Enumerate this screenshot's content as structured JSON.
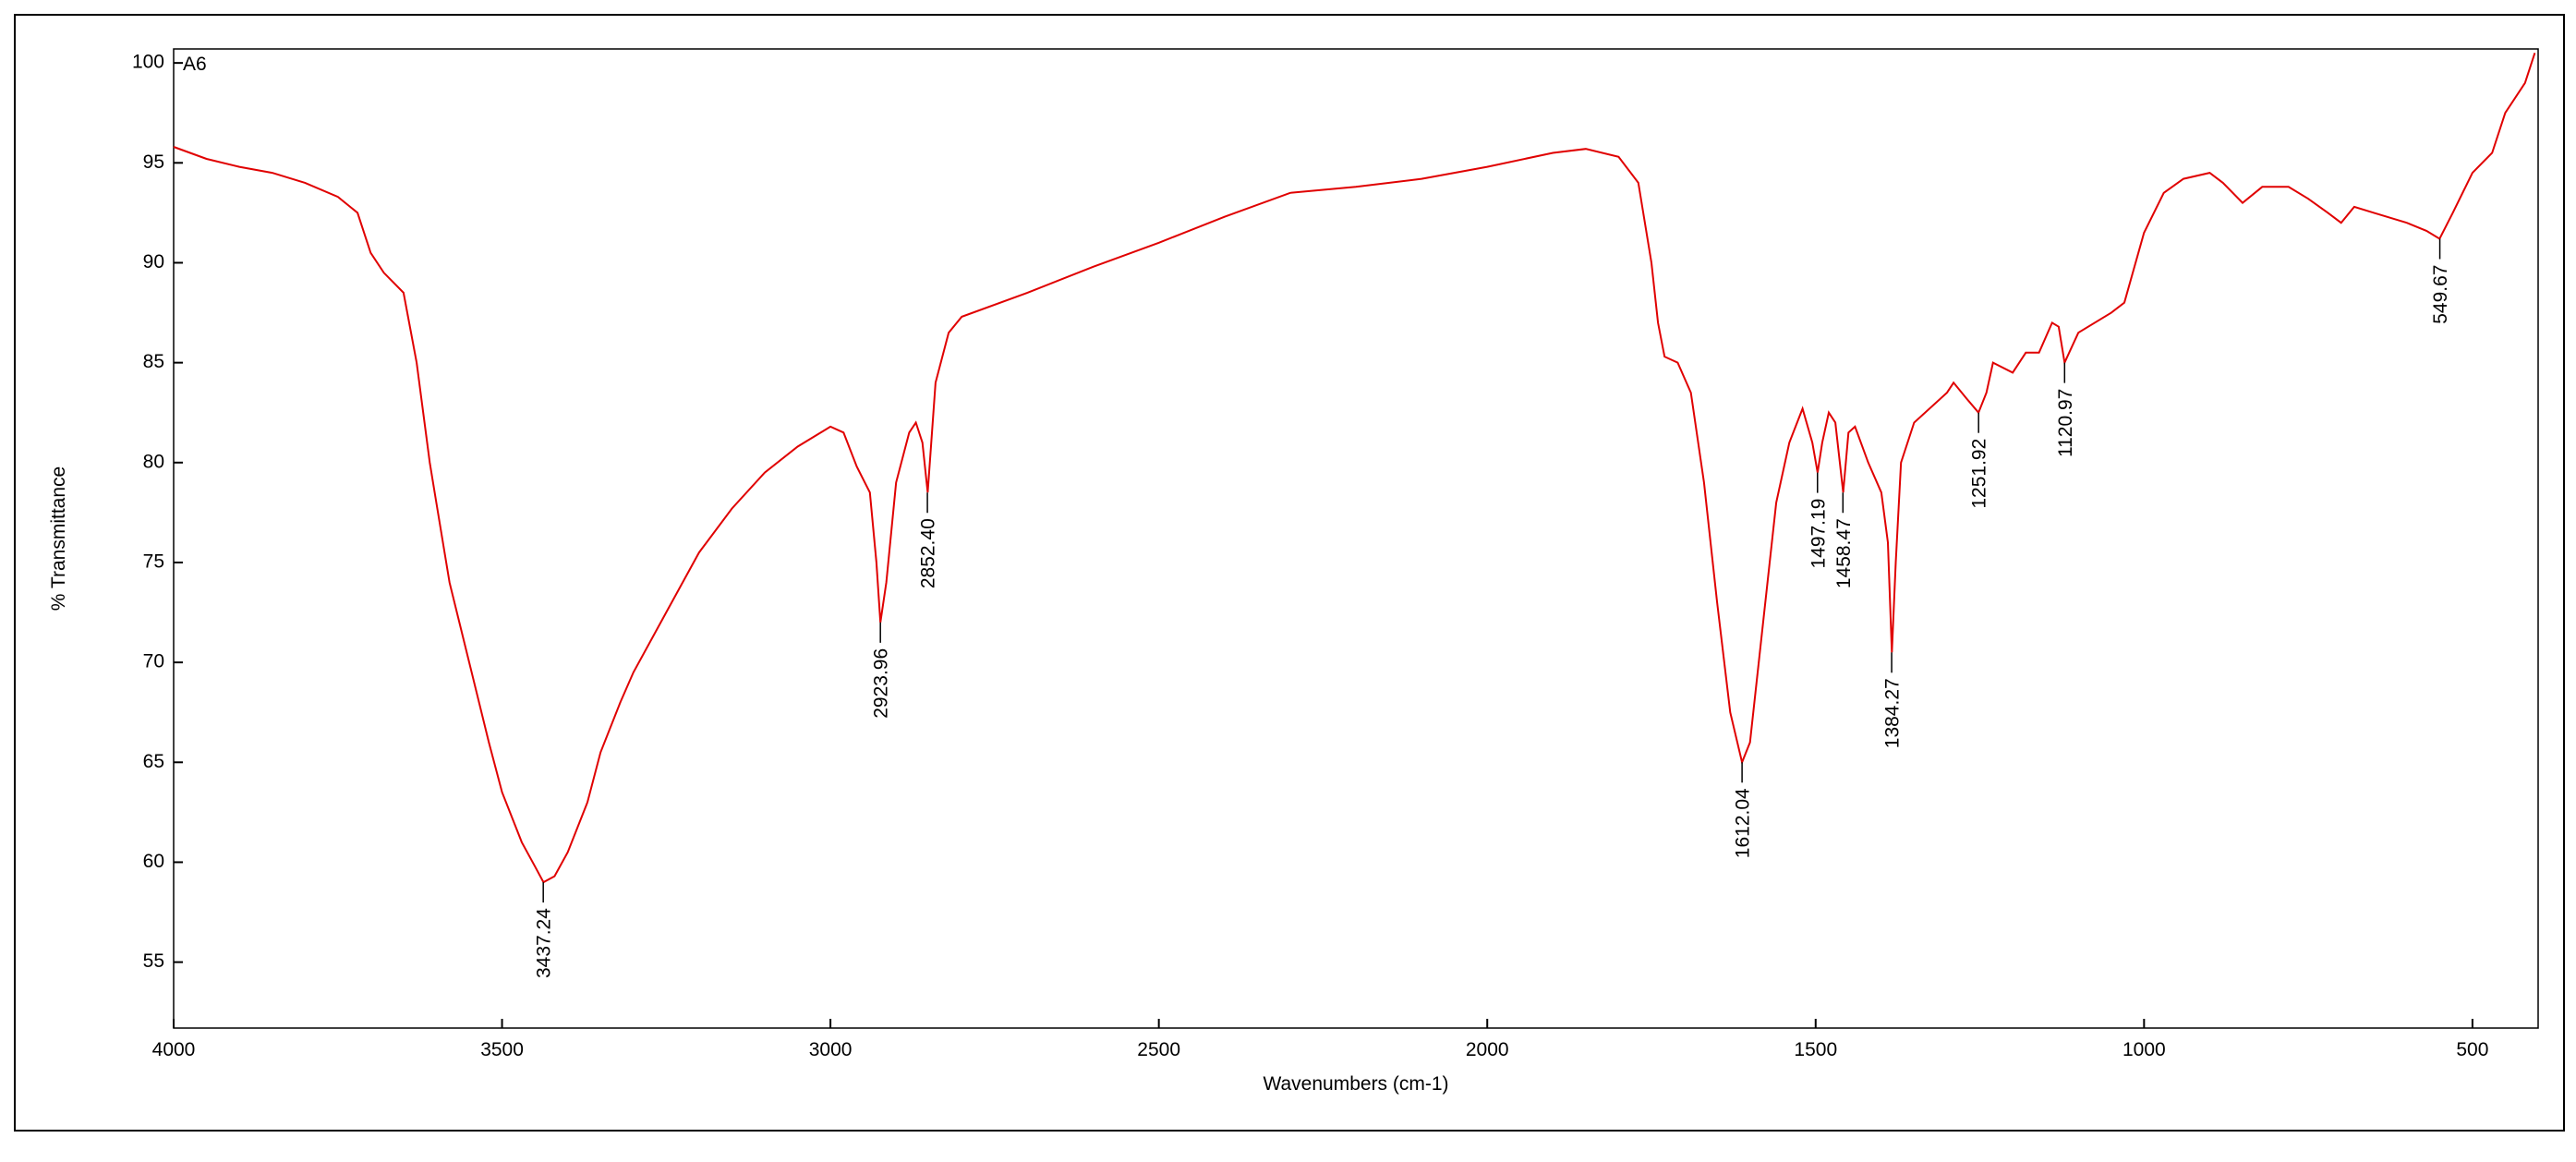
{
  "chart_data": {
    "type": "line",
    "xlabel": "Wavenumbers (cm-1)",
    "ylabel": "% Transmittance",
    "xlim": [
      4000,
      400
    ],
    "ylim": [
      51.7,
      100.7
    ],
    "xticks": [
      4000,
      3500,
      3000,
      2500,
      2000,
      1500,
      1000,
      500
    ],
    "yticks": [
      55,
      60,
      65,
      70,
      75,
      80,
      85,
      90,
      95,
      100
    ],
    "x": [
      4000,
      3950,
      3900,
      3850,
      3800,
      3750,
      3720,
      3700,
      3680,
      3650,
      3630,
      3610,
      3600,
      3580,
      3550,
      3520,
      3500,
      3470,
      3450,
      3437,
      3420,
      3400,
      3370,
      3350,
      3320,
      3300,
      3250,
      3200,
      3150,
      3100,
      3050,
      3000,
      2980,
      2960,
      2940,
      2930,
      2924,
      2915,
      2900,
      2880,
      2870,
      2860,
      2852,
      2840,
      2820,
      2800,
      2700,
      2600,
      2500,
      2400,
      2300,
      2200,
      2100,
      2000,
      1900,
      1850,
      1800,
      1770,
      1750,
      1740,
      1730,
      1710,
      1690,
      1670,
      1650,
      1630,
      1612,
      1600,
      1580,
      1560,
      1540,
      1520,
      1505,
      1497,
      1490,
      1480,
      1470,
      1458,
      1450,
      1440,
      1420,
      1400,
      1390,
      1384,
      1378,
      1370,
      1350,
      1300,
      1290,
      1270,
      1252,
      1240,
      1230,
      1200,
      1180,
      1160,
      1140,
      1130,
      1121,
      1100,
      1050,
      1030,
      1000,
      970,
      940,
      900,
      880,
      850,
      820,
      780,
      750,
      720,
      700,
      680,
      650,
      600,
      570,
      550,
      530,
      500,
      470,
      450,
      420,
      405
    ],
    "series": [
      {
        "name": "A6",
        "color": "#e00000",
        "values": [
          95.8,
          95.2,
          94.8,
          94.5,
          94,
          93.3,
          92.5,
          90.5,
          89.5,
          88.5,
          85,
          80,
          78,
          74,
          70,
          66,
          63.5,
          61,
          59.8,
          59,
          59.3,
          60.5,
          63,
          65.5,
          68,
          69.5,
          72.5,
          75.5,
          77.7,
          79.5,
          80.8,
          81.8,
          81.5,
          79.8,
          78.5,
          75,
          72,
          74,
          79,
          81.5,
          82,
          81,
          78.5,
          84,
          86.5,
          87.3,
          88.5,
          89.8,
          91,
          92.3,
          93.5,
          93.8,
          94.2,
          94.8,
          95.5,
          95.7,
          95.3,
          94,
          90,
          87,
          85.3,
          85,
          83.5,
          79,
          73,
          67.5,
          65,
          66,
          72,
          78,
          81,
          82.7,
          81,
          79.5,
          81,
          82.5,
          82,
          78.5,
          81.5,
          81.8,
          80,
          78.5,
          76,
          70.5,
          75,
          80,
          82,
          83.5,
          84,
          83.2,
          82.5,
          83.5,
          85,
          84.5,
          85.5,
          85.5,
          87,
          86.8,
          85,
          86.5,
          87.5,
          88,
          91.5,
          93.5,
          94.2,
          94.5,
          94,
          93,
          93.8,
          93.8,
          93.2,
          92.5,
          92,
          92.8,
          92.5,
          92,
          91.6,
          91.2,
          92.5,
          94.5,
          95.5,
          97.5,
          99,
          100.5
        ]
      }
    ],
    "peaks": [
      {
        "x": 3437.24,
        "y": 59,
        "label": "3437.24"
      },
      {
        "x": 2923.96,
        "y": 72,
        "label": "2923.96"
      },
      {
        "x": 2852.4,
        "y": 78.5,
        "label": "2852.40"
      },
      {
        "x": 1612.04,
        "y": 65,
        "label": "1612.04"
      },
      {
        "x": 1497.19,
        "y": 79.5,
        "label": "1497.19"
      },
      {
        "x": 1458.47,
        "y": 78.5,
        "label": "1458.47"
      },
      {
        "x": 1384.27,
        "y": 70.5,
        "label": "1384.27"
      },
      {
        "x": 1251.92,
        "y": 82.5,
        "label": "1251.92"
      },
      {
        "x": 1120.97,
        "y": 85,
        "label": "1120.97"
      },
      {
        "x": 549.67,
        "y": 91.2,
        "label": "549.67"
      }
    ]
  }
}
